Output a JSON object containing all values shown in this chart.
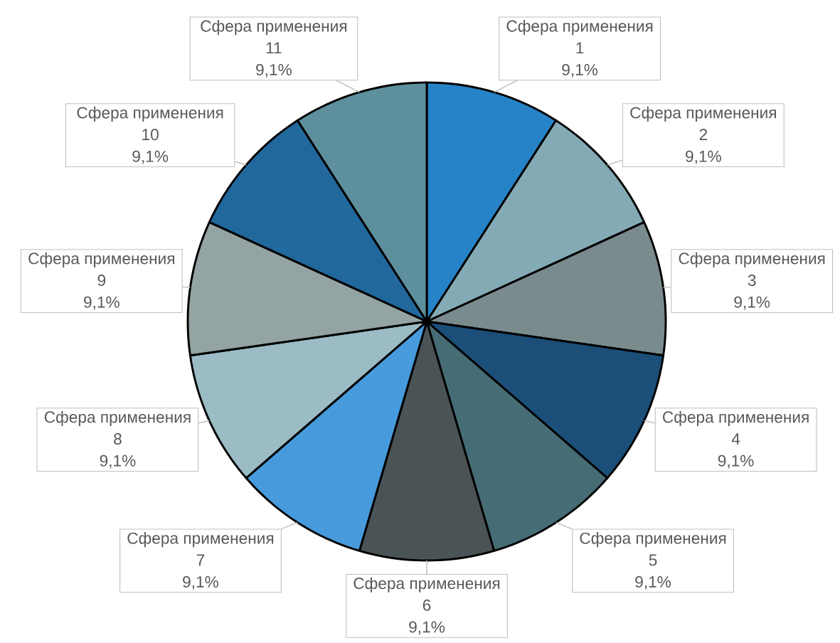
{
  "chart_data": {
    "type": "pie",
    "categories": [
      "Сфера применения 1",
      "Сфера применения 2",
      "Сфера применения 3",
      "Сфера применения 4",
      "Сфера применения 5",
      "Сфера применения 6",
      "Сфера применения 7",
      "Сфера применения 8",
      "Сфера применения 9",
      "Сфера применения 10",
      "Сфера применения 11"
    ],
    "values": [
      9.1,
      9.1,
      9.1,
      9.1,
      9.1,
      9.1,
      9.1,
      9.1,
      9.1,
      9.1,
      9.1
    ],
    "value_labels": [
      "9,1%",
      "9,1%",
      "9,1%",
      "9,1%",
      "9,1%",
      "9,1%",
      "9,1%",
      "9,1%",
      "9,1%",
      "9,1%",
      "9,1%"
    ],
    "colors": [
      "#2783c7",
      "#84abb5",
      "#7a8b8d",
      "#1b4f79",
      "#466d75",
      "#4a5355",
      "#479bdc",
      "#9bbcc5",
      "#94a3a3",
      "#21689d",
      "#5d909c"
    ]
  }
}
